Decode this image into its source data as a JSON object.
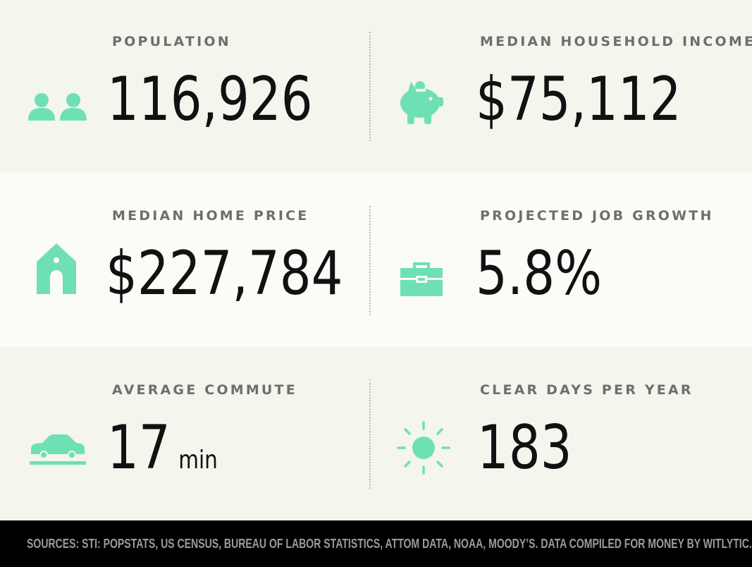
{
  "stats": {
    "population": {
      "label": "POPULATION",
      "value": "116,926",
      "icon": "people-icon"
    },
    "income": {
      "label": "MEDIAN HOUSEHOLD INCOME",
      "value": "$75,112",
      "icon": "piggy-bank-icon"
    },
    "home_price": {
      "label": "MEDIAN HOME PRICE",
      "value": "$227,784",
      "icon": "house-icon"
    },
    "job_growth": {
      "label": "PROJECTED JOB GROWTH",
      "value": "5.8%",
      "icon": "briefcase-icon"
    },
    "commute": {
      "label": "AVERAGE COMMUTE",
      "value": "17",
      "unit": "min",
      "icon": "car-icon"
    },
    "clear_days": {
      "label": "CLEAR DAYS PER YEAR",
      "value": "183",
      "icon": "sun-icon"
    }
  },
  "footer": {
    "sources": "SOURCES: STI: POPSTATS, US CENSUS, BUREAU OF LABOR STATISTICS, ATTOM DATA, NOAA, MOODY’S. DATA COMPILED FOR MONEY BY WITLYTIC."
  },
  "colors": {
    "accent": "#6fe0b4",
    "band_light": "#fbfcf8",
    "band_muted": "#f4f5ec",
    "label": "#6e6e6e",
    "value": "#111111",
    "footer_bg": "#000000",
    "footer_text": "#9b9b9b"
  }
}
